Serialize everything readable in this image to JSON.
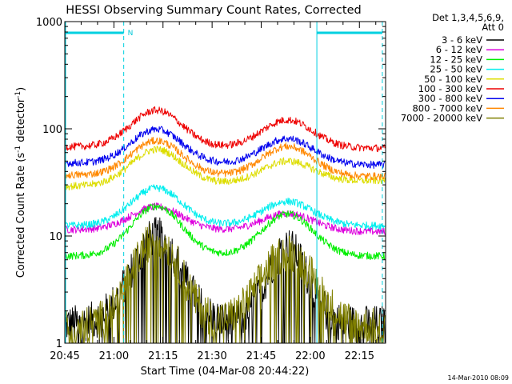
{
  "chart_data": {
    "type": "line",
    "title": "HESSI Observing Summary Count Rates, Corrected",
    "ylabel": "Corrected Count Rate (s",
    "ylabel_sup1": "-1",
    "ylabel_mid": " detector",
    "ylabel_sup2": "-1",
    "ylabel_end": ")",
    "xlabel": "Start Time (04-Mar-08 20:44:22)",
    "y_scale": "log",
    "ylim": [
      1,
      1000
    ],
    "xlim": [
      "20:45",
      "22:23"
    ],
    "x_ticks": [
      "20:45",
      "21:00",
      "21:15",
      "21:30",
      "21:45",
      "22:00",
      "22:15"
    ],
    "y_ticks": [
      "1",
      "10",
      "100",
      "1000"
    ],
    "legend_header": [
      "Det 1,3,4,5,6,9,",
      "Att 0"
    ],
    "legend_placement": "right",
    "timestamp": "14-Mar-2010 08:09",
    "night_label": "N",
    "night_markers": {
      "start_line": "20:45",
      "night_start": "21:03",
      "night_end": "22:02",
      "end_line": "22:22"
    },
    "x_key_times": [
      "20:45",
      "21:13",
      "21:38",
      "21:53",
      "22:22"
    ],
    "series": [
      {
        "name": "3 - 6 keV",
        "color": "#000000",
        "values": [
          1.5,
          10,
          2,
          8,
          1.5
        ],
        "peak2_width": 0.8
      },
      {
        "name": "6 - 12 keV",
        "color": "#dd00dd",
        "values": [
          11.5,
          19,
          11,
          16,
          11
        ]
      },
      {
        "name": "12 - 25 keV",
        "color": "#00ee00",
        "values": [
          6.5,
          19,
          6,
          16,
          6.5
        ]
      },
      {
        "name": "25 - 50 keV",
        "color": "#00eeee",
        "values": [
          12.5,
          28,
          12,
          21,
          12.5
        ]
      },
      {
        "name": "50 - 100 keV",
        "color": "#dddd00",
        "values": [
          29,
          62,
          31,
          52,
          33
        ]
      },
      {
        "name": "100 - 300 keV",
        "color": "#ee0000",
        "values": [
          68,
          150,
          68,
          120,
          66
        ]
      },
      {
        "name": "300 - 800 keV",
        "color": "#0000ee",
        "values": [
          48,
          100,
          48,
          80,
          46
        ]
      },
      {
        "name": "800 - 7000 keV",
        "color": "#ff8800",
        "values": [
          37,
          78,
          38,
          68,
          36
        ]
      },
      {
        "name": "7000 - 20000 keV",
        "color": "#808000",
        "values": [
          1.4,
          9.5,
          1.8,
          7,
          1.4
        ],
        "peak2_width": 1.1
      }
    ]
  }
}
